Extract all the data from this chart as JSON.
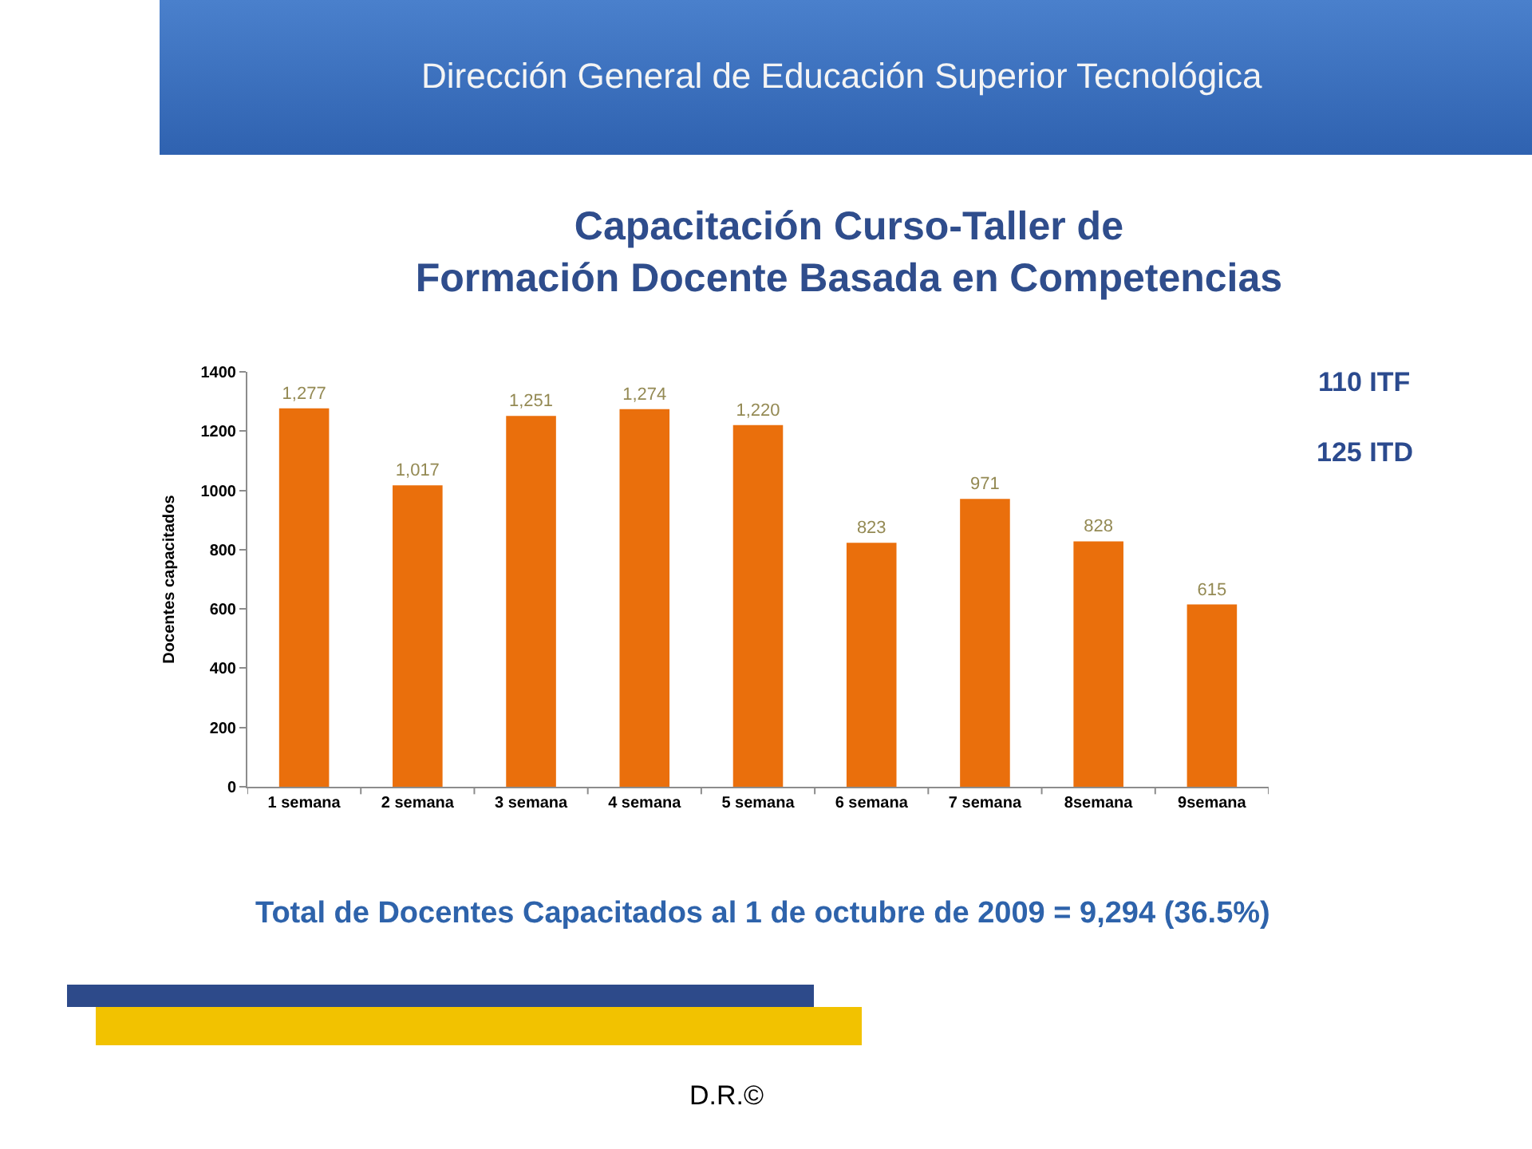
{
  "chart_data": {
    "type": "bar",
    "title": "Capacitación Curso-Taller de\nFormación Docente Basada en Competencias",
    "ylabel": "Docentes capacitados",
    "categories": [
      "1 semana",
      "2 semana",
      "3 semana",
      "4 semana",
      "5 semana",
      "6 semana",
      "7 semana",
      "8semana",
      "9semana"
    ],
    "values": [
      1277,
      1017,
      1251,
      1274,
      1220,
      823,
      971,
      828,
      615
    ],
    "value_labels": [
      "1,277",
      "1,017",
      "1,251",
      "1,274",
      "1,220",
      "823",
      "971",
      "828",
      "615"
    ],
    "color": "#ea6f0c",
    "ylim": [
      0,
      1400
    ],
    "yticks": [
      0,
      200,
      400,
      600,
      800,
      1000,
      1200,
      1400
    ],
    "annotations": [
      "Dirección General de Educación Superior Tecnológica",
      "110 ITF",
      "125 ITD",
      "Total de Docentes Capacitados al 1 de octubre de 2009 = 9,294 (36.5%)",
      "D.R.©"
    ]
  }
}
